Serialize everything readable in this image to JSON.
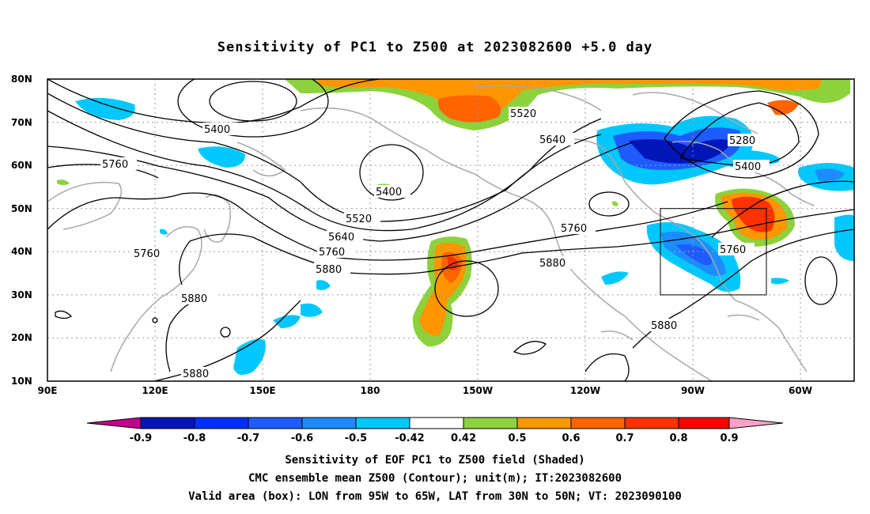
{
  "title": "Sensitivity of PC1 to Z500 at 2023082600 +5.0 day",
  "map": {
    "x_ticks": [
      "90E",
      "120E",
      "150E",
      "180",
      "150W",
      "120W",
      "90W",
      "60W"
    ],
    "y_ticks": [
      "80N",
      "70N",
      "60N",
      "50N",
      "40N",
      "30N",
      "20N",
      "10N"
    ],
    "contour_labels": [
      "5400",
      "5520",
      "5640",
      "5760",
      "5880",
      "5280",
      "5400",
      "5760",
      "5880",
      "5760",
      "5880",
      "5880",
      "5760",
      "5880",
      "5520",
      "5640",
      "5760",
      "5400"
    ],
    "box": {
      "lon_west": "95W",
      "lon_east": "65W",
      "lat_south": "30N",
      "lat_north": "50N"
    }
  },
  "colorbar": {
    "labels": [
      "-0.9",
      "-0.8",
      "-0.7",
      "-0.6",
      "-0.5",
      "-0.42",
      "0.42",
      "0.5",
      "0.6",
      "0.7",
      "0.8",
      "0.9"
    ],
    "colors": [
      "#c2008c",
      "#0016b8",
      "#0030ff",
      "#1e5cff",
      "#1e8cff",
      "#00c8ff",
      "#ffffff",
      "#8cd23c",
      "#ff9600",
      "#ff6400",
      "#ff3200",
      "#ff0000",
      "#ffa0c8"
    ]
  },
  "captions": {
    "line1": "Sensitivity of EOF PC1 to Z500 field (Shaded)",
    "line2": "CMC ensemble mean Z500 (Contour); unit(m); IT:2023082600",
    "line3": "Valid area (box): LON from 95W to 65W, LAT from 30N to 50N; VT: 2023090100"
  }
}
